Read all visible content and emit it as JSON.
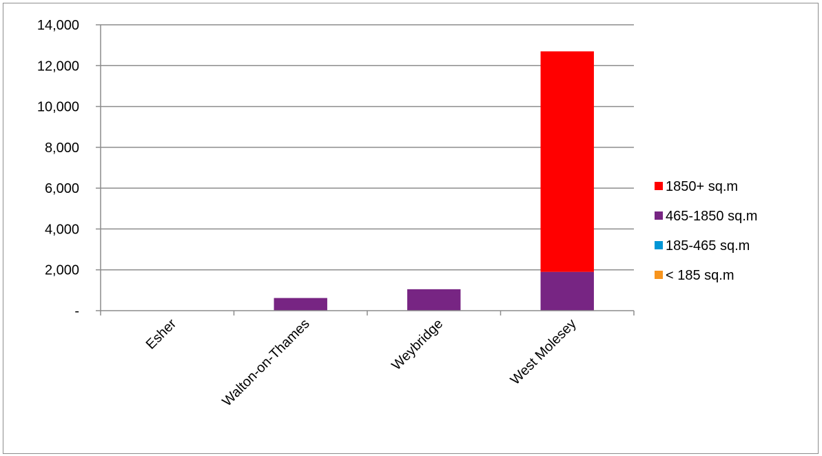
{
  "chart_data": {
    "type": "bar",
    "stacked": true,
    "title": "",
    "xlabel": "",
    "ylabel": "",
    "categories": [
      "Esher",
      "Walton-on-Thames",
      "Weybridge",
      "West Molesey"
    ],
    "series": [
      {
        "name": "< 185 sq.m",
        "color": "#f7941d",
        "values": [
          0,
          0,
          0,
          0
        ]
      },
      {
        "name": "185-465 sq.m",
        "color": "#0096d6",
        "values": [
          0,
          0,
          0,
          0
        ]
      },
      {
        "name": "465-1850 sq.m",
        "color": "#772583",
        "values": [
          0,
          620,
          1050,
          1900
        ]
      },
      {
        "name": "1850+ sq.m",
        "color": "#ff0000",
        "values": [
          0,
          0,
          0,
          10800
        ]
      }
    ],
    "ylim": [
      0,
      14000
    ],
    "yticks": [
      0,
      2000,
      4000,
      6000,
      8000,
      10000,
      12000,
      14000
    ],
    "ytick_labels": [
      "-",
      "2,000",
      "4,000",
      "6,000",
      "8,000",
      "10,000",
      "12,000",
      "14,000"
    ],
    "grid": true,
    "legend_position": "right",
    "legend_order": [
      "1850+ sq.m",
      "465-1850 sq.m",
      "185-465 sq.m",
      "< 185 sq.m"
    ]
  }
}
